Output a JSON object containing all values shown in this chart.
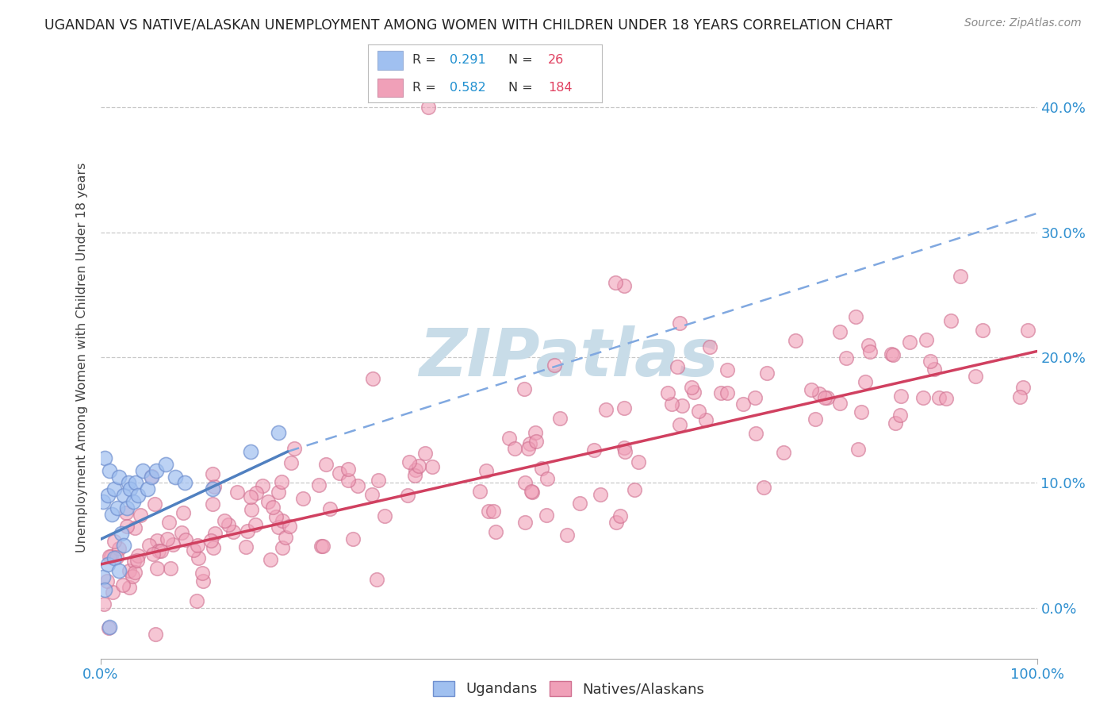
{
  "title": "UGANDAN VS NATIVE/ALASKAN UNEMPLOYMENT AMONG WOMEN WITH CHILDREN UNDER 18 YEARS CORRELATION CHART",
  "source": "Source: ZipAtlas.com",
  "ylabel": "Unemployment Among Women with Children Under 18 years",
  "ytick_vals": [
    0,
    10,
    20,
    30,
    40
  ],
  "xlim": [
    0,
    100
  ],
  "ylim": [
    -4,
    44
  ],
  "ugandan_R": 0.291,
  "ugandan_N": 26,
  "native_R": 0.582,
  "native_N": 184,
  "ugandan_color": "#a0c0f0",
  "ugandan_edge": "#7090d0",
  "native_color": "#f0a0b8",
  "native_edge": "#d07090",
  "ugandan_line_color": "#5080c0",
  "ugandan_dash_color": "#80a8e0",
  "native_line_color": "#d04060",
  "legend_R_color": "#2090d0",
  "legend_N_color": "#e04060",
  "watermark_color": "#c8dce8",
  "ugandan_line_x0": 0,
  "ugandan_line_y0": 5.5,
  "ugandan_line_x1": 20,
  "ugandan_line_y1": 12.5,
  "ugandan_dash_x0": 20,
  "ugandan_dash_y0": 12.5,
  "ugandan_dash_x1": 100,
  "ugandan_dash_y1": 31.5,
  "native_line_x0": 0,
  "native_line_y0": 3.5,
  "native_line_x1": 100,
  "native_line_y1": 20.5
}
